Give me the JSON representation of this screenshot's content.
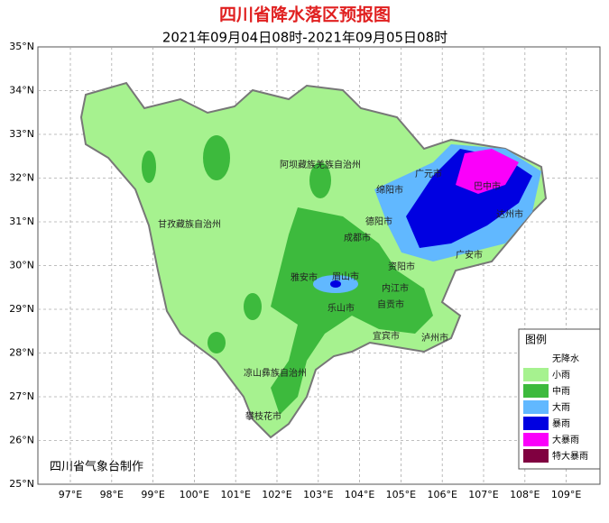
{
  "header": {
    "title": "四川省降水落区预报图",
    "subtitle": "2021年09月04日08时-2021年09月05日08时"
  },
  "axes": {
    "lat_labels": [
      "35°N",
      "34°N",
      "33°N",
      "32°N",
      "31°N",
      "30°N",
      "29°N",
      "28°N",
      "27°N",
      "26°N",
      "25°N"
    ],
    "lon_labels": [
      "97°E",
      "98°E",
      "99°E",
      "100°E",
      "101°E",
      "102°E",
      "103°E",
      "104°E",
      "105°E",
      "106°E",
      "107°E",
      "108°E",
      "109°E"
    ]
  },
  "regions": [
    "阿坝藏族羌族自治州",
    "甘孜藏族自治州",
    "绵阳市",
    "广元市",
    "巴中市",
    "达州市",
    "德阳市",
    "成都市",
    "广安市",
    "资阳市",
    "雅安市",
    "眉山市",
    "内江市",
    "乐山市",
    "自贡市",
    "宜宾市",
    "泸州市",
    "凉山彝族自治州",
    "攀枝花市"
  ],
  "legend": {
    "title": "图例",
    "items": [
      {
        "label": "无降水",
        "color": "#ffffff"
      },
      {
        "label": "小雨",
        "color": "#a6f28f"
      },
      {
        "label": "中雨",
        "color": "#3dba3d"
      },
      {
        "label": "大雨",
        "color": "#61b8ff"
      },
      {
        "label": "暴雨",
        "color": "#0000e1"
      },
      {
        "label": "大暴雨",
        "color": "#fa00fa"
      },
      {
        "label": "特大暴雨",
        "color": "#800040"
      }
    ]
  },
  "credit": "四川省气象台制作"
}
